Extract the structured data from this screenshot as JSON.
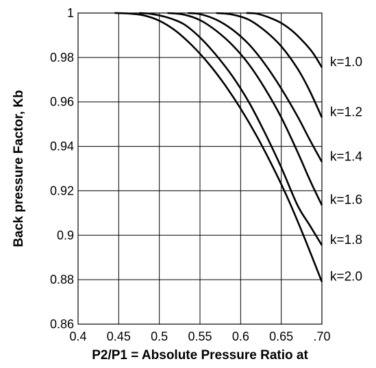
{
  "chart_data": {
    "type": "line",
    "title": "",
    "xlabel": "P2/P1 = Absolute Pressure Ratio at",
    "ylabel": "Back pressure Factor, Kb",
    "xlim": [
      0.4,
      0.7
    ],
    "ylim": [
      0.86,
      1.0
    ],
    "grid": true,
    "x_ticks": [
      {
        "value": 0.4,
        "label": "0.4"
      },
      {
        "value": 0.45,
        "label": "0.45"
      },
      {
        "value": 0.5,
        "label": "0.5"
      },
      {
        "value": 0.55,
        "label": "0.55"
      },
      {
        "value": 0.6,
        "label": "0.6"
      },
      {
        "value": 0.65,
        "label": "0.65"
      },
      {
        "value": 0.7,
        "label": ".70"
      }
    ],
    "y_ticks": [
      {
        "value": 0.86,
        "label": "0.86"
      },
      {
        "value": 0.88,
        "label": "0.88"
      },
      {
        "value": 0.9,
        "label": "0.9"
      },
      {
        "value": 0.92,
        "label": "0.92"
      },
      {
        "value": 0.94,
        "label": "0.94"
      },
      {
        "value": 0.96,
        "label": "0.96"
      },
      {
        "value": 0.98,
        "label": "0.98"
      },
      {
        "value": 1.0,
        "label": "1"
      }
    ],
    "series": [
      {
        "name": "k=1.0",
        "x": [
          0.607,
          0.62,
          0.635,
          0.65,
          0.665,
          0.68,
          0.69,
          0.7
        ],
        "y": [
          1.0,
          0.9997,
          0.998,
          0.9955,
          0.9915,
          0.986,
          0.9815,
          0.9755
        ]
      },
      {
        "name": "k=1.2",
        "x": [
          0.57,
          0.59,
          0.61,
          0.63,
          0.65,
          0.67,
          0.685,
          0.7
        ],
        "y": [
          1.0,
          0.9993,
          0.997,
          0.992,
          0.985,
          0.975,
          0.965,
          0.953
        ]
      },
      {
        "name": "k=1.4",
        "x": [
          0.535,
          0.55,
          0.57,
          0.59,
          0.61,
          0.63,
          0.65,
          0.67,
          0.685,
          0.7
        ],
        "y": [
          1.0,
          0.9995,
          0.997,
          0.9925,
          0.986,
          0.977,
          0.966,
          0.9535,
          0.943,
          0.933
        ]
      },
      {
        "name": "k=1.6",
        "x": [
          0.51,
          0.53,
          0.55,
          0.57,
          0.59,
          0.61,
          0.63,
          0.65,
          0.67,
          0.685,
          0.7
        ],
        "y": [
          1.0,
          0.9993,
          0.9968,
          0.992,
          0.9855,
          0.977,
          0.966,
          0.953,
          0.9375,
          0.925,
          0.9135
        ]
      },
      {
        "name": "k=1.8",
        "x": [
          0.475,
          0.49,
          0.51,
          0.53,
          0.55,
          0.57,
          0.59,
          0.61,
          0.63,
          0.65,
          0.67,
          0.685,
          0.7
        ],
        "y": [
          1.0,
          0.9996,
          0.998,
          0.995,
          0.989,
          0.981,
          0.9715,
          0.96,
          0.946,
          0.9305,
          0.9135,
          0.9045,
          0.8955
        ]
      },
      {
        "name": "k=2.0",
        "x": [
          0.445,
          0.46,
          0.48,
          0.5,
          0.52,
          0.54,
          0.56,
          0.58,
          0.6,
          0.62,
          0.64,
          0.66,
          0.68,
          0.7
        ],
        "y": [
          1.0,
          0.9998,
          0.999,
          0.9965,
          0.992,
          0.9855,
          0.9775,
          0.968,
          0.957,
          0.9445,
          0.9305,
          0.915,
          0.8975,
          0.879
        ]
      }
    ]
  }
}
